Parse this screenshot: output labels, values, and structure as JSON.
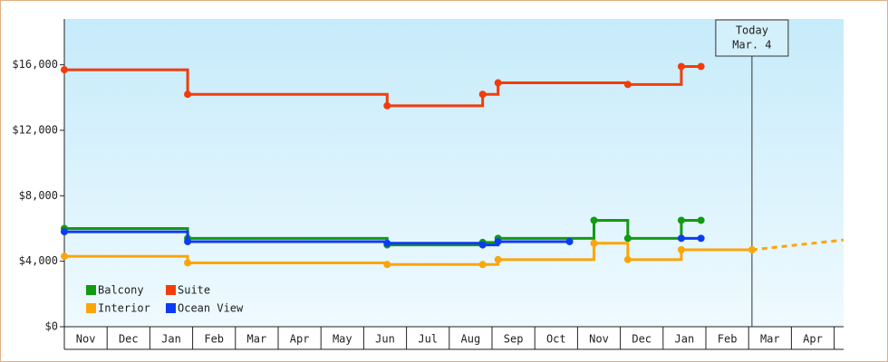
{
  "chart_data": {
    "type": "step-line",
    "categories": [
      "Nov",
      "Dec",
      "Jan",
      "Feb",
      "Mar",
      "Apr",
      "May",
      "Jun",
      "Jul",
      "Aug",
      "Sep",
      "Oct",
      "Nov",
      "Dec",
      "Jan",
      "Feb",
      "Mar",
      "Apr"
    ],
    "xlim": [
      0,
      18.2
    ],
    "ylim": [
      0,
      18800
    ],
    "yticks": [
      {
        "value": 0,
        "label": "$0"
      },
      {
        "value": 4000,
        "label": "$4,000"
      },
      {
        "value": 8000,
        "label": "$8,000"
      },
      {
        "value": 12000,
        "label": "$12,000"
      },
      {
        "value": 16000,
        "label": "$16,000"
      }
    ],
    "series": [
      {
        "name": "Balcony",
        "color": "#129a12",
        "x": [
          0,
          2.88,
          7.54,
          9.77,
          10.13,
          12.37,
          13.16,
          14.41,
          14.87
        ],
        "values": [
          6000,
          5400,
          5000,
          5150,
          5400,
          6500,
          5400,
          6500,
          6500
        ]
      },
      {
        "name": "Suite",
        "color": "#f23c0c",
        "x": [
          0,
          2.88,
          7.54,
          9.77,
          10.13,
          13.16,
          14.41,
          14.87
        ],
        "values": [
          15700,
          14200,
          13500,
          14200,
          14900,
          14800,
          15900,
          15900
        ]
      },
      {
        "name": "Interior",
        "color": "#fca50a",
        "x": [
          0,
          2.88,
          7.54,
          9.77,
          10.13,
          12.37,
          13.16,
          14.41,
          16.06
        ],
        "values": [
          4300,
          3900,
          3800,
          3800,
          4100,
          5100,
          4100,
          4700,
          4700
        ],
        "projection": {
          "x": [
            16.06,
            18.2
          ],
          "values": [
            4700,
            5300
          ]
        }
      },
      {
        "name": "Ocean View",
        "color": "#0b3cf0",
        "x": [
          0,
          2.88,
          7.54,
          9.77,
          10.13,
          11.8,
          13.16,
          14.41,
          14.87
        ],
        "values": [
          5800,
          5200,
          5100,
          5000,
          5200,
          5200,
          null,
          5400,
          5400
        ]
      }
    ],
    "annotation": {
      "x": 16.06,
      "lines": [
        "Today",
        "Mar. 4"
      ]
    }
  }
}
